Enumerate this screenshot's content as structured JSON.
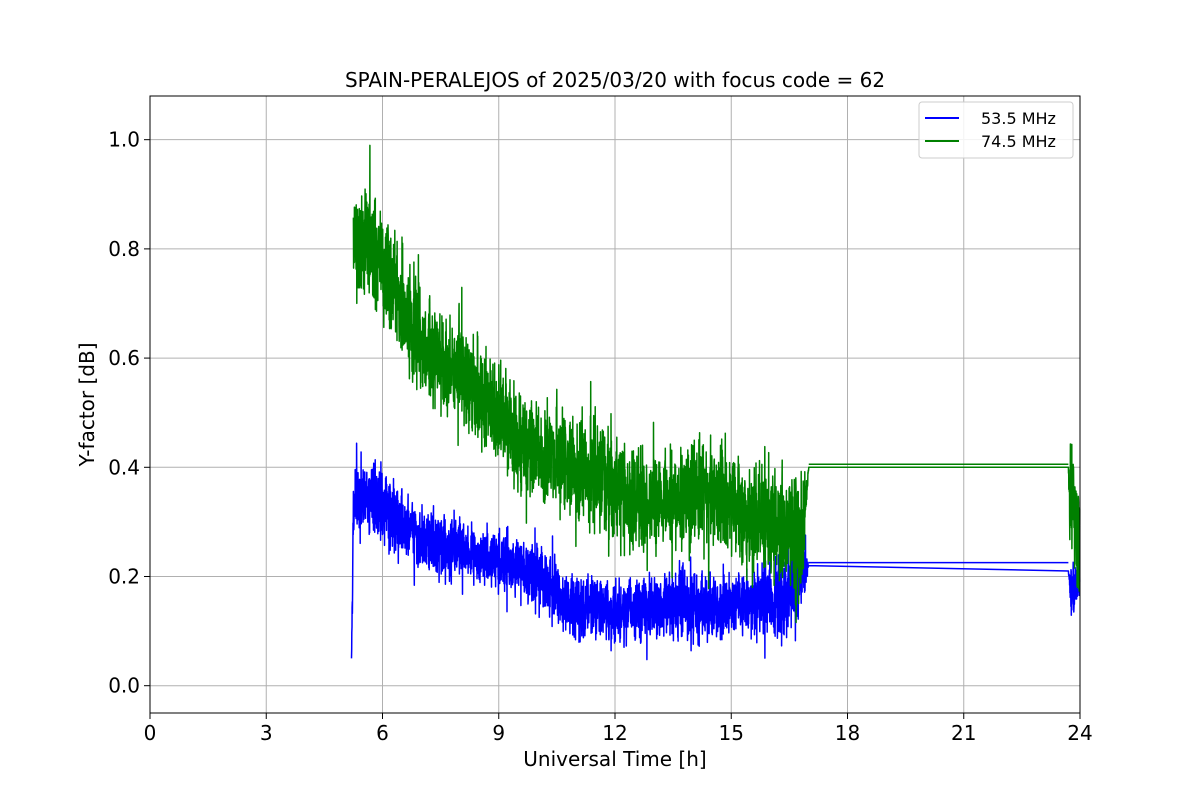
{
  "chart_data": {
    "type": "line",
    "title": "SPAIN-PERALEJOS of 2025/03/20 with focus code = 62",
    "xlabel": "Universal Time [h]",
    "ylabel": "Y-factor [dB]",
    "xlim": [
      0,
      24
    ],
    "ylim": [
      -0.05,
      1.08
    ],
    "xticks": [
      0,
      3,
      6,
      9,
      12,
      15,
      18,
      21,
      24
    ],
    "xtick_labels": [
      "0",
      "3",
      "6",
      "9",
      "12",
      "15",
      "18",
      "21",
      "24"
    ],
    "yticks": [
      0.0,
      0.2,
      0.4,
      0.6,
      0.8,
      1.0
    ],
    "ytick_labels": [
      "0.0",
      "0.2",
      "0.4",
      "0.6",
      "0.8",
      "1.0"
    ],
    "grid": true,
    "legend_position": "top-right",
    "series": [
      {
        "name": "53.5 MHz",
        "color": "#0000ff",
        "x": [
          5.2,
          5.25,
          5.5,
          6.0,
          6.5,
          7.0,
          7.5,
          8.0,
          8.5,
          9.0,
          9.5,
          10.0,
          10.5,
          11.0,
          11.5,
          12.0,
          12.5,
          13.0,
          13.5,
          14.0,
          14.5,
          15.0,
          15.5,
          16.0,
          16.5,
          16.8,
          17.0,
          23.7,
          23.75,
          24.0
        ],
        "y": [
          0.05,
          0.33,
          0.34,
          0.33,
          0.29,
          0.27,
          0.26,
          0.25,
          0.24,
          0.23,
          0.22,
          0.2,
          0.17,
          0.14,
          0.14,
          0.13,
          0.14,
          0.15,
          0.15,
          0.15,
          0.14,
          0.15,
          0.15,
          0.16,
          0.17,
          0.2,
          0.22,
          0.21,
          0.17,
          0.2
        ],
        "amplitude": [
          0.0,
          0.08,
          0.1,
          0.1,
          0.09,
          0.08,
          0.08,
          0.07,
          0.07,
          0.08,
          0.08,
          0.08,
          0.08,
          0.09,
          0.08,
          0.08,
          0.08,
          0.08,
          0.09,
          0.1,
          0.09,
          0.08,
          0.08,
          0.09,
          0.1,
          0.12,
          0.0,
          0.0,
          0.07,
          0.05
        ],
        "gap_after_x": 17.0
      },
      {
        "name": "74.5 MHz",
        "color": "#008000",
        "x": [
          5.25,
          5.5,
          6.0,
          6.5,
          7.0,
          7.5,
          8.0,
          8.5,
          9.0,
          9.5,
          10.0,
          10.5,
          11.0,
          11.5,
          12.0,
          12.5,
          13.0,
          13.5,
          14.0,
          14.5,
          15.0,
          15.5,
          16.0,
          16.5,
          16.8,
          17.0,
          23.7,
          23.75,
          24.0
        ],
        "y": [
          0.8,
          0.82,
          0.78,
          0.7,
          0.62,
          0.6,
          0.58,
          0.52,
          0.5,
          0.45,
          0.42,
          0.42,
          0.4,
          0.38,
          0.36,
          0.33,
          0.33,
          0.34,
          0.36,
          0.35,
          0.35,
          0.3,
          0.3,
          0.3,
          0.25,
          0.4,
          0.4,
          0.35,
          0.24
        ],
        "amplitude": [
          0.12,
          0.15,
          0.14,
          0.14,
          0.13,
          0.13,
          0.13,
          0.13,
          0.13,
          0.13,
          0.13,
          0.13,
          0.13,
          0.14,
          0.14,
          0.14,
          0.13,
          0.13,
          0.15,
          0.13,
          0.13,
          0.14,
          0.14,
          0.14,
          0.17,
          0.0,
          0.0,
          0.16,
          0.15
        ],
        "gap_after_x": 17.0
      }
    ]
  }
}
